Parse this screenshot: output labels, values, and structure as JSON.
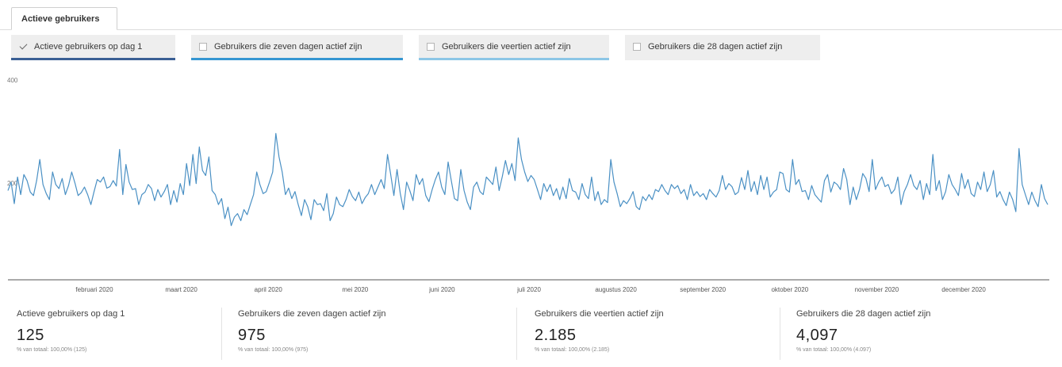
{
  "tab": {
    "label": "Actieve gebruikers"
  },
  "toggles": [
    {
      "label": "Actieve gebruikers op dag 1",
      "checked": true,
      "color": "#3a5f94"
    },
    {
      "label": "Gebruikers die zeven dagen actief zijn",
      "checked": false,
      "color": "#3596d2"
    },
    {
      "label": "Gebruikers die veertien actief zijn",
      "checked": false,
      "color": "#8cc6e6"
    },
    {
      "label": "Gebruikers die 28 dagen actief zijn",
      "checked": false,
      "color": "#eeeeee"
    }
  ],
  "chart_data": {
    "type": "line",
    "title": "",
    "xlabel": "",
    "ylabel": "",
    "ylim": [
      0,
      400
    ],
    "yticks": [
      "400",
      "200"
    ],
    "xticks": [
      "februari 2020",
      "maart 2020",
      "april 2020",
      "mei 2020",
      "juni 2020",
      "juli 2020",
      "augustus 2020",
      "september 2020",
      "oktober 2020",
      "november 2020",
      "december 2020"
    ],
    "grid": false,
    "line_color": "#4a90c4",
    "series": [
      {
        "values": [
          178,
          195,
          152,
          205,
          170,
          210,
          198,
          175,
          168,
          198,
          240,
          190,
          172,
          160,
          215,
          190,
          182,
          202,
          170,
          188,
          215,
          193,
          168,
          174,
          185,
          170,
          150,
          176,
          200,
          195,
          205,
          183,
          186,
          198,
          187,
          260,
          170,
          230,
          195,
          180,
          182,
          150,
          170,
          175,
          190,
          182,
          158,
          180,
          165,
          176,
          190,
          150,
          178,
          155,
          192,
          170,
          232,
          188,
          250,
          192,
          265,
          218,
          208,
          245,
          178,
          170,
          150,
          162,
          122,
          145,
          108,
          125,
          132,
          118,
          140,
          130,
          150,
          170,
          215,
          190,
          172,
          176,
          195,
          215,
          292,
          245,
          215,
          170,
          183,
          162,
          176,
          150,
          128,
          160,
          146,
          120,
          160,
          150,
          152,
          138,
          172,
          118,
          132,
          165,
          150,
          146,
          160,
          180,
          166,
          158,
          175,
          152,
          164,
          172,
          190,
          170,
          185,
          200,
          182,
          250,
          210,
          168,
          220,
          173,
          140,
          195,
          178,
          158,
          210,
          190,
          202,
          168,
          156,
          180,
          200,
          215,
          185,
          170,
          235,
          198,
          162,
          158,
          220,
          178,
          155,
          140,
          185,
          195,
          176,
          170,
          205,
          198,
          190,
          225,
          178,
          206,
          238,
          210,
          232,
          198,
          283,
          240,
          215,
          196,
          208,
          200,
          180,
          160,
          192,
          176,
          190,
          168,
          182,
          160,
          185,
          162,
          202,
          178,
          175,
          160,
          192,
          170,
          162,
          205,
          158,
          176,
          150,
          160,
          154,
          240,
          195,
          172,
          146,
          158,
          152,
          162,
          176,
          146,
          140,
          166,
          158,
          170,
          160,
          180,
          176,
          190,
          178,
          170,
          190,
          182,
          188,
          172,
          180,
          160,
          190,
          168,
          176,
          166,
          172,
          160,
          180,
          172,
          165,
          178,
          208,
          180,
          192,
          186,
          170,
          175,
          204,
          180,
          218,
          176,
          196,
          170,
          208,
          180,
          205,
          165,
          175,
          180,
          215,
          212,
          180,
          175,
          240,
          190,
          200,
          176,
          178,
          160,
          188,
          170,
          162,
          155,
          198,
          210,
          175,
          195,
          190,
          180,
          222,
          200,
          150,
          185,
          160,
          180,
          212,
          202,
          176,
          240,
          180,
          195,
          205,
          186,
          190,
          172,
          180,
          205,
          150,
          176,
          190,
          210,
          188,
          180,
          198,
          160,
          192,
          170,
          250,
          178,
          198,
          160,
          176,
          210,
          190,
          180,
          168,
          212,
          182,
          200,
          172,
          166,
          195,
          180,
          215,
          176,
          190,
          218,
          165,
          176,
          160,
          148,
          175,
          160,
          136,
          262,
          190,
          170,
          150,
          175,
          158,
          146,
          190,
          162,
          150
        ]
      }
    ]
  },
  "cards": [
    {
      "title": "Actieve gebruikers op dag 1",
      "value": "125",
      "sub": "% van totaal: 100,00% (125)"
    },
    {
      "title": "Gebruikers die zeven dagen actief zijn",
      "value": "975",
      "sub": "% van totaal: 100,00% (975)"
    },
    {
      "title": "Gebruikers die veertien actief zijn",
      "value": "2.185",
      "sub": "% van totaal: 100,00% (2.185)"
    },
    {
      "title": "Gebruikers die 28 dagen actief zijn",
      "value": "4,097",
      "sub": "% van totaal: 100,00% (4.097)"
    }
  ]
}
